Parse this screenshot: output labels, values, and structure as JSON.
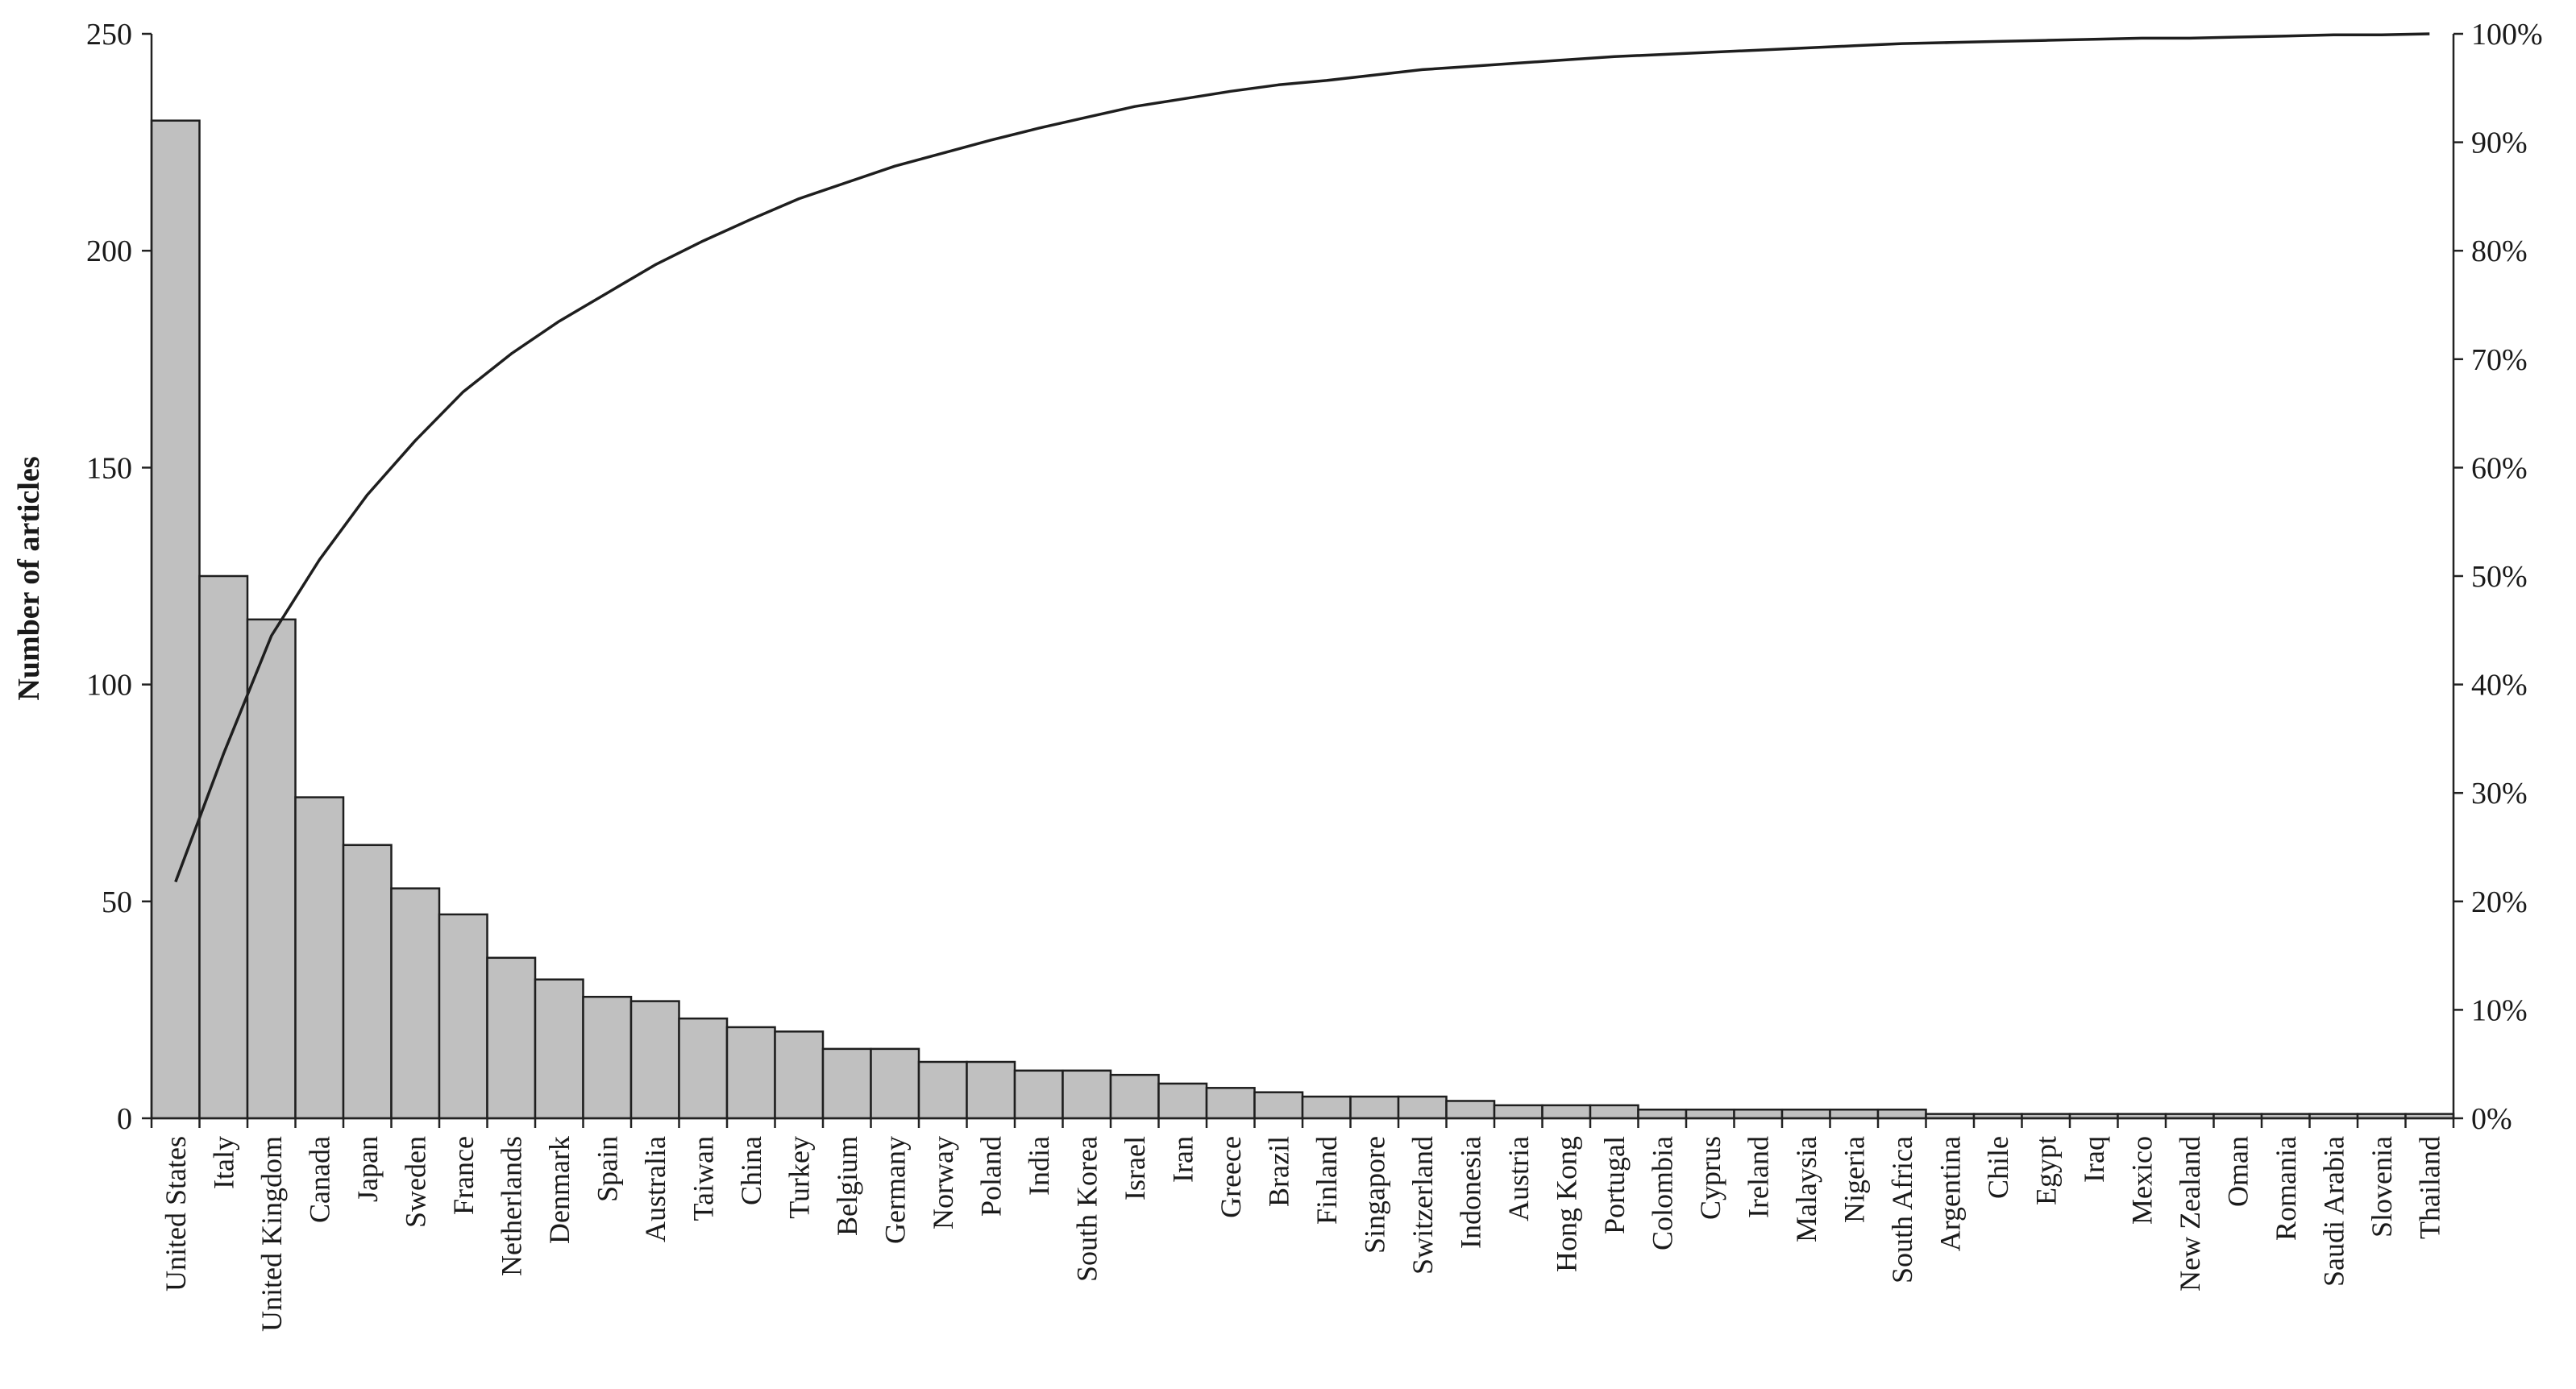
{
  "chart_data": {
    "type": "bar",
    "subtype": "pareto",
    "ylabel": "Number of articles",
    "ylim": [
      0,
      250
    ],
    "y_ticks": [
      "0",
      "50",
      "100",
      "150",
      "200",
      "250"
    ],
    "y2lim": [
      0,
      100
    ],
    "y2_ticks": [
      "0%",
      "10%",
      "20%",
      "30%",
      "40%",
      "50%",
      "60%",
      "70%",
      "80%",
      "90%",
      "100%"
    ],
    "grid": false,
    "legend": "none",
    "categories": [
      "United States",
      "Italy",
      "United Kingdom",
      "Canada",
      "Japan",
      "Sweden",
      "France",
      "Netherlands",
      "Denmark",
      "Spain",
      "Australia",
      "Taiwan",
      "China",
      "Turkey",
      "Belgium",
      "Germany",
      "Norway",
      "Poland",
      "India",
      "South Korea",
      "Israel",
      "Iran",
      "Greece",
      "Brazil",
      "Finland",
      "Singapore",
      "Switzerland",
      "Indonesia",
      "Austria",
      "Hong Kong",
      "Portugal",
      "Colombia",
      "Cyprus",
      "Ireland",
      "Malaysia",
      "Nigeria",
      "South Africa",
      "Argentina",
      "Chile",
      "Egypt",
      "Iraq",
      "Mexico",
      "New Zealand",
      "Oman",
      "Romania",
      "Saudi Arabia",
      "Slovenia",
      "Thailand"
    ],
    "series": [
      {
        "type": "bar",
        "values": [
          230,
          125,
          115,
          74,
          63,
          53,
          47,
          37,
          32,
          28,
          27,
          23,
          21,
          20,
          16,
          16,
          13,
          13,
          11,
          11,
          10,
          8,
          7,
          6,
          5,
          5,
          5,
          4,
          3,
          3,
          3,
          2,
          2,
          2,
          2,
          2,
          2,
          1,
          1,
          1,
          1,
          1,
          1,
          1,
          1,
          1,
          1,
          1
        ]
      },
      {
        "type": "line",
        "axis": "right",
        "unit": "%",
        "values": [
          21.8,
          33.6,
          44.5,
          51.5,
          57.5,
          62.5,
          67.0,
          70.5,
          73.5,
          76.1,
          78.7,
          80.9,
          82.9,
          84.8,
          86.3,
          87.8,
          89.0,
          90.2,
          91.3,
          92.3,
          93.3,
          94.0,
          94.7,
          95.3,
          95.7,
          96.2,
          96.7,
          97.0,
          97.3,
          97.6,
          97.9,
          98.1,
          98.3,
          98.5,
          98.7,
          98.9,
          99.1,
          99.2,
          99.3,
          99.4,
          99.5,
          99.6,
          99.6,
          99.7,
          99.8,
          99.9,
          99.9,
          100.0
        ]
      }
    ],
    "colors": {
      "bar_fill": "#c0c0c0",
      "bar_stroke": "#1e1e1e",
      "line": "#1e1e1e",
      "axis": "#222222"
    }
  }
}
